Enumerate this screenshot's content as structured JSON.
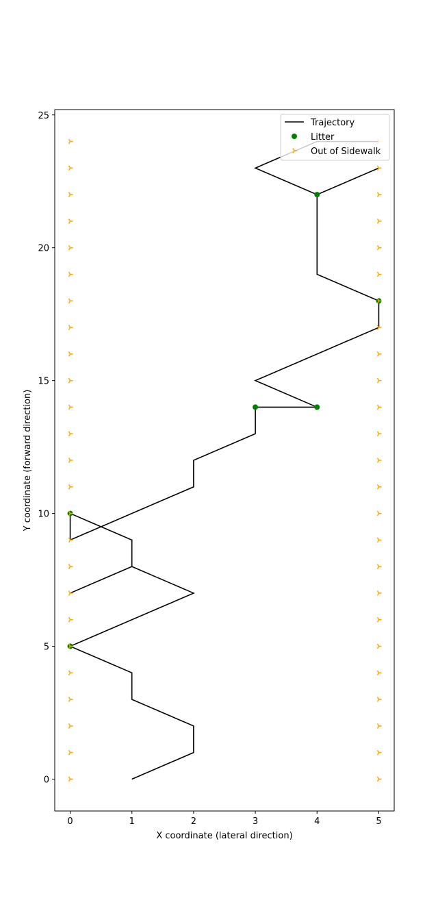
{
  "chart_data": {
    "type": "line",
    "title": "",
    "xlabel": "X coordinate (lateral direction)",
    "ylabel": "Y coordinate (forward direction)",
    "xlim": [
      -0.25,
      5.25
    ],
    "ylim": [
      -1.2,
      25.2
    ],
    "xticks": [
      0,
      1,
      2,
      3,
      4,
      5
    ],
    "yticks": [
      0,
      5,
      10,
      15,
      20,
      25
    ],
    "grid": false,
    "legend_position": "top-right",
    "colors": {
      "trajectory": "#000000",
      "litter": "#008000",
      "out_of_sidewalk": "#ffa500"
    },
    "series": [
      {
        "name": "Trajectory",
        "kind": "line",
        "points": [
          [
            1,
            0
          ],
          [
            2,
            1
          ],
          [
            2,
            2
          ],
          [
            1,
            3
          ],
          [
            1,
            4
          ],
          [
            0,
            5
          ],
          [
            2,
            7
          ],
          [
            1,
            8
          ],
          [
            0,
            7
          ],
          [
            1,
            8
          ],
          [
            1,
            9
          ],
          [
            0,
            10
          ],
          [
            0,
            9
          ],
          [
            2,
            11
          ],
          [
            2,
            12
          ],
          [
            3,
            13
          ],
          [
            3,
            14
          ],
          [
            4,
            14
          ],
          [
            3,
            15
          ],
          [
            5,
            17
          ],
          [
            5,
            18
          ],
          [
            4,
            19
          ],
          [
            4,
            22
          ],
          [
            5,
            23
          ],
          [
            4,
            22
          ],
          [
            3,
            23
          ],
          [
            4,
            24
          ],
          [
            5,
            24
          ]
        ]
      },
      {
        "name": "Litter",
        "kind": "scatter",
        "marker": "circle",
        "points": [
          [
            0,
            5
          ],
          [
            0,
            10
          ],
          [
            3,
            14
          ],
          [
            4,
            14
          ],
          [
            5,
            18
          ],
          [
            4,
            22
          ]
        ]
      },
      {
        "name": "Out of Sidewalk",
        "kind": "scatter",
        "marker": "tri-right",
        "points": [
          [
            0,
            0
          ],
          [
            0,
            1
          ],
          [
            0,
            2
          ],
          [
            0,
            3
          ],
          [
            0,
            4
          ],
          [
            0,
            5
          ],
          [
            0,
            6
          ],
          [
            0,
            7
          ],
          [
            0,
            8
          ],
          [
            0,
            9
          ],
          [
            0,
            10
          ],
          [
            0,
            11
          ],
          [
            0,
            12
          ],
          [
            0,
            13
          ],
          [
            0,
            14
          ],
          [
            0,
            15
          ],
          [
            0,
            16
          ],
          [
            0,
            17
          ],
          [
            0,
            18
          ],
          [
            0,
            19
          ],
          [
            0,
            20
          ],
          [
            0,
            21
          ],
          [
            0,
            22
          ],
          [
            0,
            23
          ],
          [
            0,
            24
          ],
          [
            5,
            0
          ],
          [
            5,
            1
          ],
          [
            5,
            2
          ],
          [
            5,
            3
          ],
          [
            5,
            4
          ],
          [
            5,
            5
          ],
          [
            5,
            6
          ],
          [
            5,
            7
          ],
          [
            5,
            8
          ],
          [
            5,
            9
          ],
          [
            5,
            10
          ],
          [
            5,
            11
          ],
          [
            5,
            12
          ],
          [
            5,
            13
          ],
          [
            5,
            14
          ],
          [
            5,
            15
          ],
          [
            5,
            16
          ],
          [
            5,
            17
          ],
          [
            5,
            18
          ],
          [
            5,
            19
          ],
          [
            5,
            20
          ],
          [
            5,
            21
          ],
          [
            5,
            22
          ],
          [
            5,
            23
          ],
          [
            5,
            24
          ]
        ]
      }
    ]
  }
}
